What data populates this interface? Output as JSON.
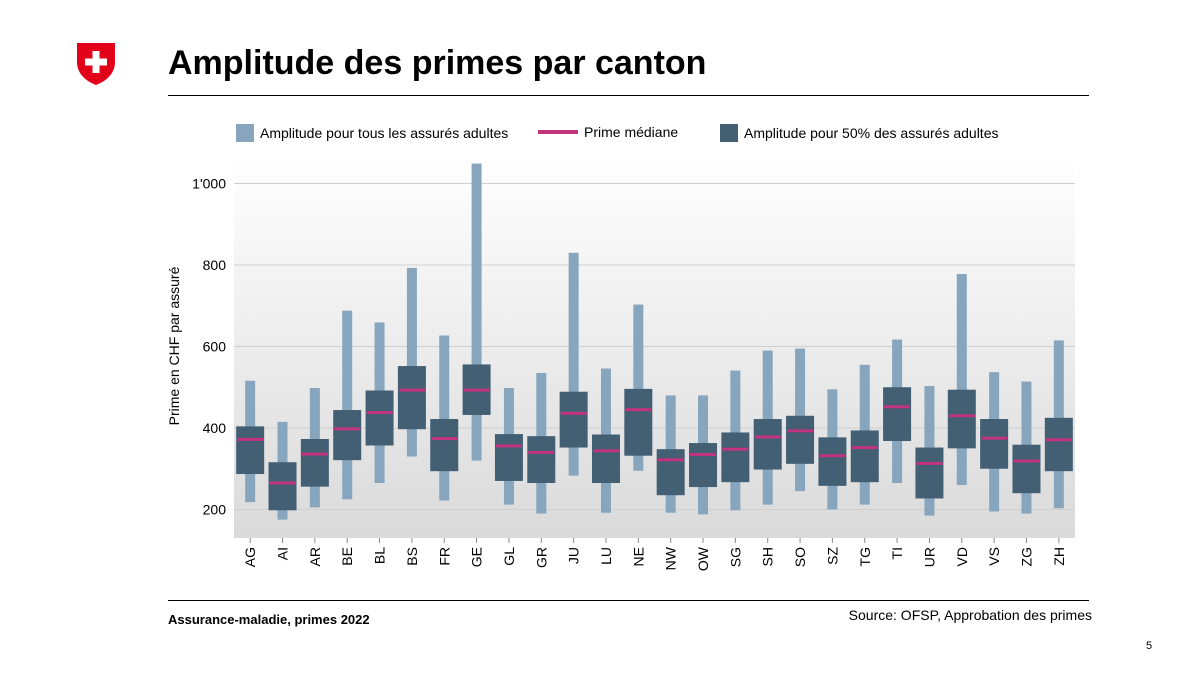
{
  "slide": {
    "title": "Amplitude des primes par canton",
    "footer_left": "Assurance-maladie, primes 2022",
    "footer_right": "Source: OFSP, Approbation  des primes",
    "page_number": "5",
    "logo_icon": "swiss-cross-icon"
  },
  "colors": {
    "full_range": "#87a6bd",
    "iqr": "#425f74",
    "median": "#c2337d",
    "grid": "#cfcfcf",
    "logo_red": "#e3001b"
  },
  "legend": {
    "full_range": "Amplitude pour tous les assurés adultes",
    "median": "Prime médiane",
    "iqr": "Amplitude pour 50% des assurés adultes"
  },
  "chart_data": {
    "type": "boxplot",
    "title": "",
    "xlabel": "",
    "ylabel": "Prime en CHF par assuré",
    "ylim": [
      130,
      1070
    ],
    "yticks": [
      200,
      400,
      600,
      800,
      1000
    ],
    "ytick_labels": [
      "200",
      "400",
      "600",
      "800",
      "1'000"
    ],
    "grid": true,
    "legend_position": "top",
    "categories": [
      "AG",
      "AI",
      "AR",
      "BE",
      "BL",
      "BS",
      "FR",
      "GE",
      "GL",
      "GR",
      "JU",
      "LU",
      "NE",
      "NW",
      "OW",
      "SG",
      "SH",
      "SO",
      "SZ",
      "TG",
      "TI",
      "UR",
      "VD",
      "VS",
      "ZG",
      "ZH"
    ],
    "series": [
      {
        "name": "Amplitude pour tous les assurés adultes",
        "low": [
          218,
          175,
          205,
          225,
          265,
          330,
          222,
          320,
          212,
          190,
          283,
          192,
          295,
          192,
          188,
          198,
          212,
          245,
          200,
          212,
          265,
          185,
          260,
          195,
          190,
          203
        ],
        "high": [
          516,
          415,
          498,
          688,
          659,
          793,
          627,
          1049,
          498,
          535,
          830,
          546,
          703,
          480,
          480,
          541,
          590,
          595,
          495,
          555,
          617,
          503,
          778,
          537,
          514,
          615
        ]
      },
      {
        "name": "Amplitude pour 50% des assurés adultes",
        "q1": [
          287,
          198,
          256,
          321,
          357,
          397,
          294,
          432,
          270,
          265,
          352,
          265,
          332,
          235,
          255,
          267,
          298,
          312,
          258,
          267,
          368,
          227,
          350,
          300,
          240,
          294
        ],
        "q3": [
          404,
          316,
          373,
          444,
          492,
          552,
          422,
          556,
          385,
          380,
          489,
          384,
          496,
          348,
          363,
          389,
          422,
          430,
          377,
          394,
          500,
          352,
          494,
          422,
          359,
          425
        ]
      },
      {
        "name": "Prime médiane",
        "values": [
          372,
          265,
          336,
          398,
          438,
          493,
          374,
          493,
          356,
          340,
          436,
          344,
          445,
          322,
          335,
          348,
          378,
          393,
          332,
          352,
          452,
          313,
          430,
          375,
          319,
          371
        ]
      }
    ]
  }
}
